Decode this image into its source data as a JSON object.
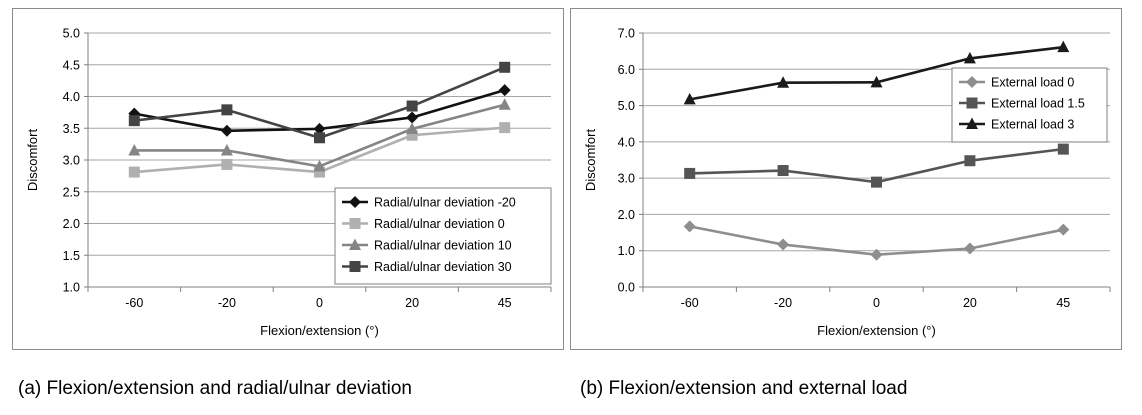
{
  "chart_data": [
    {
      "type": "line",
      "title": "",
      "xlabel": "Flexion/extension (°)",
      "ylabel": "Discomfort",
      "categories": [
        "-60",
        "-20",
        "0",
        "20",
        "45"
      ],
      "ylim": [
        1.0,
        5.0
      ],
      "yticks": [
        "1.0",
        "1.5",
        "2.0",
        "2.5",
        "3.0",
        "3.5",
        "4.0",
        "4.5",
        "5.0"
      ],
      "grid": true,
      "legend_position": "bottom-right",
      "series": [
        {
          "name": "Radial/ulnar deviation -20",
          "values": [
            3.73,
            3.46,
            3.49,
            3.67,
            4.1
          ],
          "color": "#111111",
          "marker": "diamond"
        },
        {
          "name": "Radial/ulnar deviation 0",
          "values": [
            2.81,
            2.93,
            2.81,
            3.39,
            3.51
          ],
          "color": "#b0b0b0",
          "marker": "square"
        },
        {
          "name": "Radial/ulnar deviation 10",
          "values": [
            3.15,
            3.15,
            2.9,
            3.49,
            3.87
          ],
          "color": "#858585",
          "marker": "triangle"
        },
        {
          "name": "Radial/ulnar deviation 30",
          "values": [
            3.62,
            3.79,
            3.35,
            3.85,
            4.46
          ],
          "color": "#444444",
          "marker": "square"
        }
      ]
    },
    {
      "type": "line",
      "title": "",
      "xlabel": "Flexion/extension (°)",
      "ylabel": "Discomfort",
      "categories": [
        "-60",
        "-20",
        "0",
        "20",
        "45"
      ],
      "ylim": [
        0.0,
        7.0
      ],
      "yticks": [
        "0.0",
        "1.0",
        "2.0",
        "3.0",
        "4.0",
        "5.0",
        "6.0",
        "7.0"
      ],
      "grid": true,
      "legend_position": "top-right",
      "series": [
        {
          "name": "External load 0",
          "values": [
            1.67,
            1.17,
            0.89,
            1.06,
            1.58
          ],
          "color": "#8e8e8e",
          "marker": "diamond"
        },
        {
          "name": "External load 1.5",
          "values": [
            3.13,
            3.21,
            2.89,
            3.48,
            3.8
          ],
          "color": "#555555",
          "marker": "square"
        },
        {
          "name": "External load 3",
          "values": [
            5.17,
            5.63,
            5.64,
            6.3,
            6.61
          ],
          "color": "#1a1a1a",
          "marker": "triangle"
        }
      ]
    }
  ],
  "captions": {
    "a": "(a) Flexion/extension and radial/ulnar deviation",
    "b": "(b) Flexion/extension and external load"
  }
}
